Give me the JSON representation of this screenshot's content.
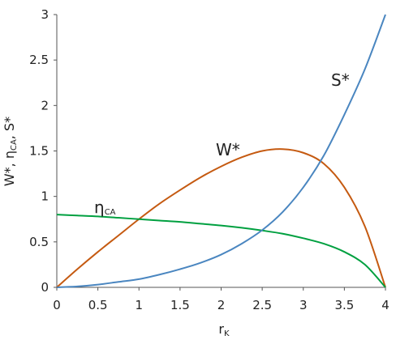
{
  "chart_data": {
    "type": "line",
    "xlabel": {
      "main": "r",
      "sub": "K"
    },
    "ylabel": "W*, η CA, S*",
    "ylabel_parts": [
      {
        "text": "W*, η",
        "sub": false
      },
      {
        "text": "CA",
        "sub": true
      },
      {
        "text": ", S*",
        "sub": false
      }
    ],
    "xlim": [
      0,
      4
    ],
    "ylim": [
      0,
      3
    ],
    "x_ticks": [
      0,
      0.5,
      1,
      1.5,
      2,
      2.5,
      3,
      3.5,
      4
    ],
    "x_tick_labels": [
      "0",
      "0.5",
      "1",
      "1.5",
      "2",
      "2.5",
      "3",
      "3.5",
      "4"
    ],
    "y_ticks": [
      0,
      0.5,
      1,
      1.5,
      2,
      2.5,
      3
    ],
    "y_tick_labels": [
      "0",
      "0.5",
      "1",
      "1.5",
      "2",
      "2.5",
      "3"
    ],
    "grid": false,
    "legend": "inline labels",
    "series": [
      {
        "name": "W*",
        "label_main": "W*",
        "label_sub": "",
        "color": "#c55a11",
        "x": [
          0,
          0.25,
          0.5,
          0.75,
          1.0,
          1.25,
          1.5,
          1.75,
          2.0,
          2.25,
          2.5,
          2.75,
          3.0,
          3.25,
          3.5,
          3.75,
          4.0
        ],
        "y": [
          0,
          0.2,
          0.39,
          0.57,
          0.75,
          0.92,
          1.07,
          1.21,
          1.33,
          1.43,
          1.5,
          1.52,
          1.48,
          1.36,
          1.1,
          0.67,
          0
        ]
      },
      {
        "name": "ηCA",
        "label_main": "η",
        "label_sub": "CA",
        "color": "#00a040",
        "x": [
          0,
          0.25,
          0.5,
          0.75,
          1.0,
          1.25,
          1.5,
          1.75,
          2.0,
          2.25,
          2.5,
          2.75,
          3.0,
          3.25,
          3.5,
          3.75,
          4.0
        ],
        "y": [
          0.8,
          0.79,
          0.78,
          0.765,
          0.75,
          0.735,
          0.72,
          0.7,
          0.68,
          0.655,
          0.625,
          0.59,
          0.54,
          0.48,
          0.39,
          0.25,
          0
        ]
      },
      {
        "name": "S*",
        "label_main": "S*",
        "label_sub": "",
        "color": "#4a86c0",
        "x": [
          0,
          0.25,
          0.5,
          0.75,
          1.0,
          1.25,
          1.5,
          1.75,
          2.0,
          2.25,
          2.5,
          2.75,
          3.0,
          3.25,
          3.5,
          3.75,
          4.0
        ],
        "y": [
          0,
          0.01,
          0.03,
          0.06,
          0.09,
          0.14,
          0.2,
          0.27,
          0.36,
          0.48,
          0.63,
          0.83,
          1.1,
          1.45,
          1.9,
          2.4,
          3.0
        ]
      }
    ]
  }
}
